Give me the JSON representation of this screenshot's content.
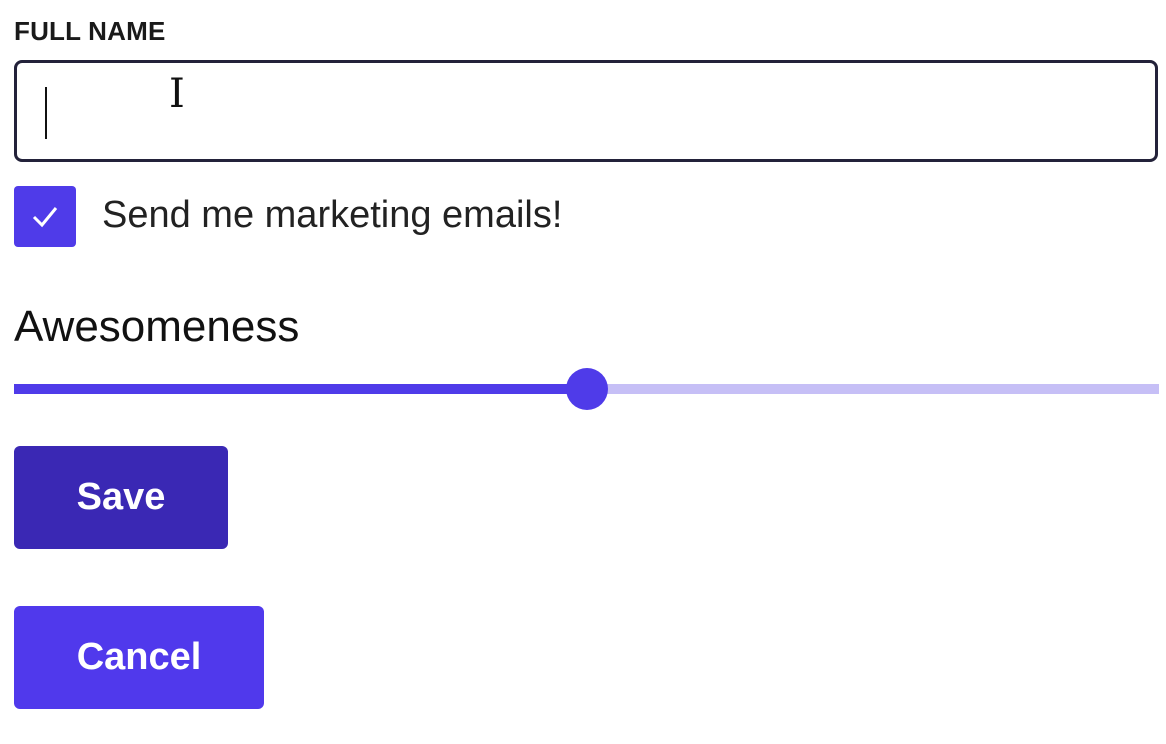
{
  "form": {
    "full_name_label": "FULL NAME",
    "full_name_value": "",
    "marketing_label": "Send me marketing emails!",
    "marketing_checked": true,
    "slider_label": "Awesomeness",
    "slider_value_percent": 50,
    "save_label": "Save",
    "cancel_label": "Cancel"
  },
  "colors": {
    "primary": "#4f3be9",
    "save": "#3a28b4",
    "track": "#c6bff6"
  }
}
